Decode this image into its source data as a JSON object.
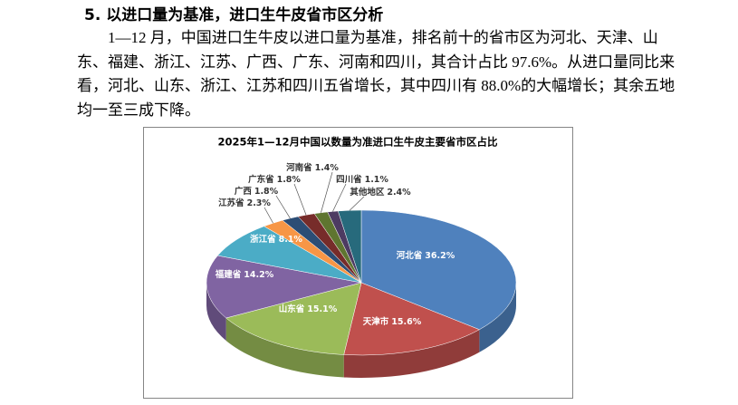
{
  "heading": "5. 以进口量为基准，进口生牛皮省市区分析",
  "paragraph": "1—12 月，中国进口生牛皮以进口量为基准，排名前十的省市区为河北、天津、山东、福建、浙江、江苏、广西、广东、河南和四川，其合计占比 97.6%。从进口量同比来看，河北、山东、浙江、江苏和四川五省增长，其中四川有 88.0%的大幅增长；其余五地均一至三成下降。",
  "chart_data": {
    "type": "pie",
    "title": "2025年1—12月中国以数量为准进口生牛皮主要省市区占比",
    "categories": [
      "河北省",
      "天津市",
      "山东省",
      "福建省",
      "浙江省",
      "江苏省",
      "广西",
      "广东省",
      "河南省",
      "四川省",
      "其他地区"
    ],
    "values": [
      36.2,
      15.6,
      15.1,
      14.2,
      8.1,
      2.3,
      1.8,
      1.8,
      1.4,
      1.1,
      2.4
    ],
    "value_labels": [
      "36.2%",
      "15.6%",
      "15.1%",
      "14.2%",
      "8.1%",
      "2.3%",
      "1.8%",
      "1.8%",
      "1.4%",
      "1.1%",
      "2.4%"
    ],
    "colors": [
      "#4f81bd",
      "#c0504d",
      "#9bbb59",
      "#8064a2",
      "#4bacc6",
      "#f79646",
      "#2c4d75",
      "#772c2a",
      "#5f7530",
      "#4d3b62",
      "#276a7c"
    ]
  }
}
